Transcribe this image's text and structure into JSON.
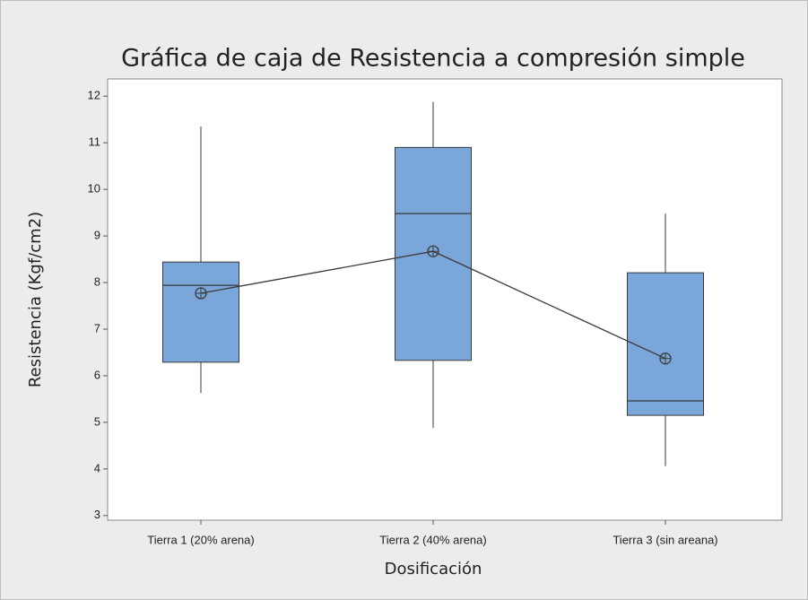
{
  "chart_data": {
    "type": "box",
    "title": "Gráfica de caja de Resistencia a compresión simple",
    "x_label": "Dosificación",
    "y_label": "Resistencia (Kgf/cm2)",
    "categories": [
      "Tierra 1 (20% arena)",
      "Tierra 2 (40% arena)",
      "Tierra 3 (sin areana)"
    ],
    "whisker_low": [
      5.63,
      4.88,
      4.06
    ],
    "q1": [
      6.29,
      6.33,
      5.15
    ],
    "median": [
      7.94,
      9.48,
      5.46
    ],
    "q3": [
      8.44,
      10.9,
      8.21
    ],
    "whisker_high": [
      11.35,
      11.88,
      9.48
    ],
    "mean": [
      7.77,
      8.67,
      6.37
    ],
    "color": "#7ba6da",
    "ylim": [
      2.9,
      12.37
    ],
    "yticks": [
      3,
      4,
      5,
      6,
      7,
      8,
      9,
      10,
      11,
      12
    ]
  }
}
